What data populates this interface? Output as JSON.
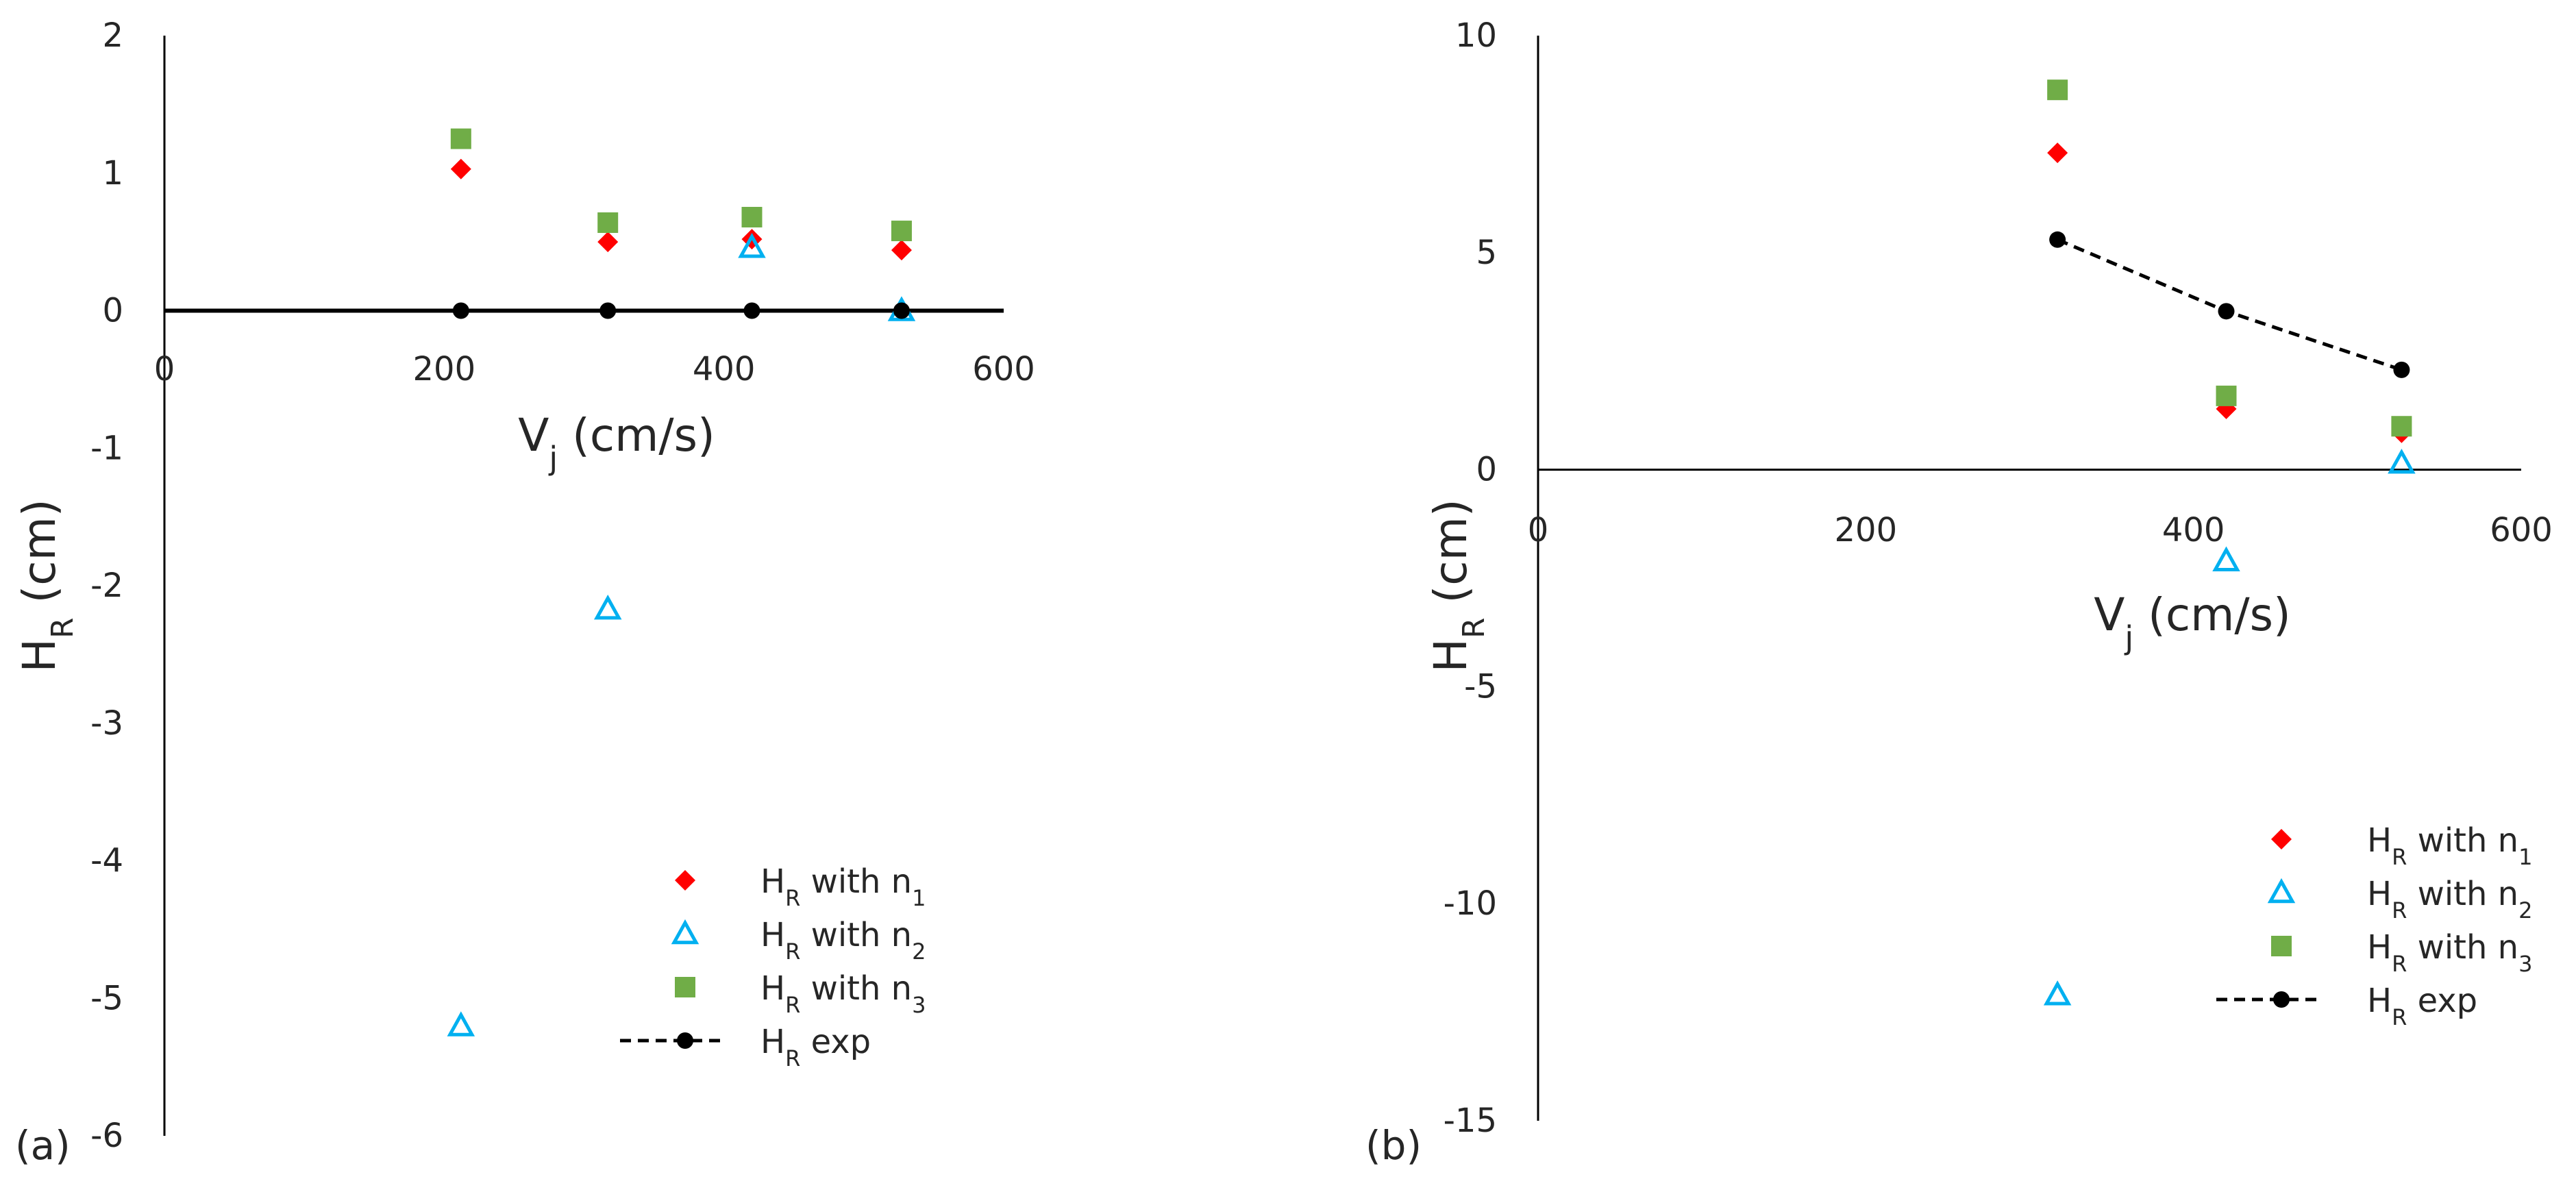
{
  "figure": {
    "panels": [
      "(a)",
      "(b)"
    ]
  },
  "chart_data": [
    {
      "type": "scatter",
      "panel_label": "(a)",
      "title": "",
      "xlabel_main": "V",
      "xlabel_sub": "j",
      "xlabel_rest": " (cm/s)",
      "ylabel_main": "H",
      "ylabel_sub": "R",
      "ylabel_rest": " (cm)",
      "xlim": [
        0,
        600
      ],
      "ylim": [
        -6,
        2
      ],
      "x_ticks": [
        0,
        200,
        400,
        600
      ],
      "x_tick_labels": [
        "0",
        "200",
        "400",
        "600"
      ],
      "y_ticks": [
        -6,
        -5,
        -4,
        -3,
        -2,
        -1,
        0,
        1,
        2
      ],
      "y_tick_labels": [
        "-6",
        "-5",
        "-4",
        "-3",
        "-2",
        "-1",
        "0",
        "1",
        "2"
      ],
      "grid": false,
      "legend_position": "bottom-right",
      "series": [
        {
          "name": "H_R with n_1",
          "label_main": "H",
          "label_sub1": "R",
          "label_mid": " with n",
          "label_sub2": "1",
          "marker": "diamond",
          "color": "#ff0000",
          "line": false,
          "x": [
            212,
            317,
            420,
            527
          ],
          "y": [
            1.03,
            0.5,
            0.52,
            0.44
          ]
        },
        {
          "name": "H_R with n_2",
          "label_main": "H",
          "label_sub1": "R",
          "label_mid": " with n",
          "label_sub2": "2",
          "marker": "triangle-open",
          "color": "#00b0f0",
          "line": false,
          "x": [
            212,
            317,
            420,
            527
          ],
          "y": [
            -5.2,
            -2.17,
            0.46,
            0.0
          ]
        },
        {
          "name": "H_R with n_3",
          "label_main": "H",
          "label_sub1": "R",
          "label_mid": " with n",
          "label_sub2": "3",
          "marker": "square",
          "color": "#70ad47",
          "line": false,
          "x": [
            212,
            317,
            420,
            527
          ],
          "y": [
            1.25,
            0.64,
            0.68,
            0.58
          ]
        },
        {
          "name": "H_R exp",
          "label_main": "H",
          "label_sub1": "R",
          "label_mid": " exp",
          "label_sub2": "",
          "marker": "circle",
          "color": "#000000",
          "line": true,
          "x": [
            212,
            317,
            420,
            527
          ],
          "y": [
            0.0,
            0.0,
            0.0,
            0.0
          ]
        }
      ]
    },
    {
      "type": "scatter",
      "panel_label": "(b)",
      "title": "",
      "xlabel_main": "V",
      "xlabel_sub": "j",
      "xlabel_rest": " (cm/s)",
      "ylabel_main": "H",
      "ylabel_sub": "R",
      "ylabel_rest": " (cm)",
      "xlim": [
        0,
        600
      ],
      "ylim": [
        -15,
        10
      ],
      "x_ticks": [
        0,
        200,
        400,
        600
      ],
      "x_tick_labels": [
        "0",
        "200",
        "400",
        "600"
      ],
      "y_ticks": [
        -15,
        -10,
        -5,
        0,
        5,
        10
      ],
      "y_tick_labels": [
        "-15",
        "-10",
        "-5",
        "0",
        "5",
        "10"
      ],
      "grid": false,
      "legend_position": "bottom-right",
      "series": [
        {
          "name": "H_R with n_1",
          "label_main": "H",
          "label_sub1": "R",
          "label_mid": " with n",
          "label_sub2": "1",
          "marker": "diamond",
          "color": "#ff0000",
          "line": false,
          "x": [
            317,
            420,
            527
          ],
          "y": [
            7.3,
            1.4,
            0.85
          ]
        },
        {
          "name": "H_R with n_2",
          "label_main": "H",
          "label_sub1": "R",
          "label_mid": " with n",
          "label_sub2": "2",
          "marker": "triangle-open",
          "color": "#00b0f0",
          "line": false,
          "x": [
            317,
            420,
            527
          ],
          "y": [
            -12.1,
            -2.1,
            0.15
          ]
        },
        {
          "name": "H_R with n_3",
          "label_main": "H",
          "label_sub1": "R",
          "label_mid": " with n",
          "label_sub2": "3",
          "marker": "square",
          "color": "#70ad47",
          "line": false,
          "x": [
            317,
            420,
            527
          ],
          "y": [
            8.75,
            1.7,
            1.0
          ]
        },
        {
          "name": "H_R exp",
          "label_main": "H",
          "label_sub1": "R",
          "label_mid": " exp",
          "label_sub2": "",
          "marker": "circle",
          "color": "#000000",
          "line": true,
          "x": [
            317,
            420,
            527
          ],
          "y": [
            5.3,
            3.65,
            2.3
          ]
        }
      ]
    }
  ]
}
